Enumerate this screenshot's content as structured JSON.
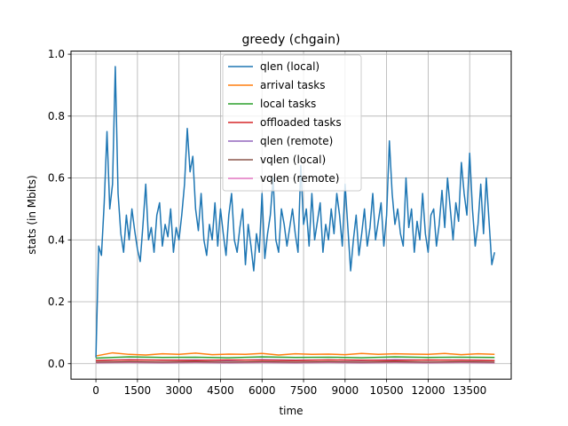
{
  "chart_data": {
    "type": "line",
    "title": "greedy (chgain)",
    "xlabel": "time",
    "ylabel": "stats (in Mbits)",
    "xlim": [
      -900,
      15000
    ],
    "ylim": [
      -0.05,
      1.01
    ],
    "xticks": [
      0,
      1500,
      3000,
      4500,
      6000,
      7500,
      9000,
      10500,
      12000,
      13500
    ],
    "yticks": [
      0.0,
      0.2,
      0.4,
      0.6,
      0.8,
      1.0
    ],
    "xtick_labels": [
      "0",
      "1500",
      "3000",
      "4500",
      "6000",
      "7500",
      "9000",
      "10500",
      "12000",
      "13500"
    ],
    "ytick_labels": [
      "0.0",
      "0.2",
      "0.4",
      "0.6",
      "0.8",
      "1.0"
    ],
    "grid": true,
    "legend_position": "top-center",
    "x_range": [
      0,
      14400
    ],
    "series": [
      {
        "name": "qlen (local)",
        "color": "#1f77b4",
        "x": [
          0,
          100,
          200,
          300,
          400,
          500,
          600,
          700,
          800,
          900,
          1000,
          1100,
          1200,
          1300,
          1400,
          1500,
          1600,
          1700,
          1800,
          1900,
          2000,
          2100,
          2200,
          2300,
          2400,
          2500,
          2600,
          2700,
          2800,
          2900,
          3000,
          3100,
          3200,
          3300,
          3400,
          3500,
          3600,
          3700,
          3800,
          3900,
          4000,
          4100,
          4200,
          4300,
          4400,
          4500,
          4600,
          4700,
          4800,
          4900,
          5000,
          5100,
          5200,
          5300,
          5400,
          5500,
          5600,
          5700,
          5800,
          5900,
          6000,
          6100,
          6200,
          6300,
          6400,
          6500,
          6600,
          6700,
          6800,
          6900,
          7000,
          7100,
          7200,
          7300,
          7400,
          7500,
          7600,
          7700,
          7800,
          7900,
          8000,
          8100,
          8200,
          8300,
          8400,
          8500,
          8600,
          8700,
          8800,
          8900,
          9000,
          9100,
          9200,
          9300,
          9400,
          9500,
          9600,
          9700,
          9800,
          9900,
          10000,
          10100,
          10200,
          10300,
          10400,
          10500,
          10600,
          10700,
          10800,
          10900,
          11000,
          11100,
          11200,
          11300,
          11400,
          11500,
          11600,
          11700,
          11800,
          11900,
          12000,
          12100,
          12200,
          12300,
          12400,
          12500,
          12600,
          12700,
          12800,
          12900,
          13000,
          13100,
          13200,
          13300,
          13400,
          13500,
          13600,
          13700,
          13800,
          13900,
          14000,
          14100,
          14200,
          14300,
          14400
        ],
        "values": [
          0.02,
          0.38,
          0.35,
          0.52,
          0.75,
          0.5,
          0.58,
          0.96,
          0.55,
          0.42,
          0.36,
          0.48,
          0.4,
          0.5,
          0.43,
          0.37,
          0.33,
          0.45,
          0.58,
          0.4,
          0.44,
          0.36,
          0.48,
          0.52,
          0.38,
          0.45,
          0.41,
          0.5,
          0.36,
          0.44,
          0.4,
          0.48,
          0.58,
          0.76,
          0.62,
          0.67,
          0.5,
          0.43,
          0.55,
          0.4,
          0.35,
          0.45,
          0.4,
          0.52,
          0.38,
          0.5,
          0.42,
          0.35,
          0.48,
          0.55,
          0.4,
          0.36,
          0.44,
          0.5,
          0.32,
          0.45,
          0.38,
          0.3,
          0.42,
          0.36,
          0.55,
          0.34,
          0.42,
          0.48,
          0.6,
          0.4,
          0.36,
          0.5,
          0.45,
          0.38,
          0.44,
          0.5,
          0.42,
          0.36,
          0.64,
          0.45,
          0.5,
          0.38,
          0.55,
          0.4,
          0.46,
          0.52,
          0.36,
          0.45,
          0.4,
          0.5,
          0.42,
          0.55,
          0.48,
          0.38,
          0.58,
          0.44,
          0.3,
          0.4,
          0.48,
          0.35,
          0.42,
          0.5,
          0.38,
          0.44,
          0.55,
          0.4,
          0.46,
          0.52,
          0.38,
          0.48,
          0.72,
          0.55,
          0.45,
          0.5,
          0.42,
          0.38,
          0.6,
          0.44,
          0.5,
          0.36,
          0.46,
          0.4,
          0.55,
          0.42,
          0.36,
          0.48,
          0.5,
          0.38,
          0.45,
          0.56,
          0.44,
          0.6,
          0.5,
          0.4,
          0.52,
          0.46,
          0.65,
          0.55,
          0.48,
          0.68,
          0.5,
          0.38,
          0.45,
          0.58,
          0.42,
          0.6,
          0.46,
          0.32,
          0.36
        ]
      },
      {
        "name": "arrival tasks",
        "color": "#ff7f0e",
        "x": [
          0,
          600,
          1200,
          1800,
          2400,
          3000,
          3600,
          4200,
          4800,
          5400,
          6000,
          6600,
          7200,
          7800,
          8400,
          9000,
          9600,
          10200,
          10800,
          11400,
          12000,
          12600,
          13200,
          13800,
          14400
        ],
        "values": [
          0.025,
          0.035,
          0.03,
          0.028,
          0.032,
          0.03,
          0.034,
          0.029,
          0.031,
          0.03,
          0.033,
          0.028,
          0.032,
          0.03,
          0.031,
          0.029,
          0.033,
          0.03,
          0.032,
          0.031,
          0.03,
          0.033,
          0.029,
          0.032,
          0.03
        ]
      },
      {
        "name": "local tasks",
        "color": "#2ca02c",
        "x": [
          0,
          1200,
          2400,
          3600,
          4800,
          6000,
          7200,
          8400,
          9600,
          10800,
          12000,
          13200,
          14400
        ],
        "values": [
          0.018,
          0.022,
          0.02,
          0.021,
          0.019,
          0.022,
          0.02,
          0.021,
          0.019,
          0.022,
          0.02,
          0.021,
          0.02
        ]
      },
      {
        "name": "offloaded tasks",
        "color": "#d62728",
        "x": [
          0,
          1200,
          2400,
          3600,
          4800,
          6000,
          7200,
          8400,
          9600,
          10800,
          12000,
          13200,
          14400
        ],
        "values": [
          0.01,
          0.012,
          0.011,
          0.01,
          0.012,
          0.011,
          0.01,
          0.012,
          0.011,
          0.01,
          0.012,
          0.011,
          0.01
        ]
      },
      {
        "name": "qlen (remote)",
        "color": "#9467bd",
        "x": [
          0,
          1200,
          2400,
          3600,
          4800,
          6000,
          7200,
          8400,
          9600,
          10800,
          12000,
          13200,
          14400
        ],
        "values": [
          0.01,
          0.013,
          0.011,
          0.012,
          0.01,
          0.013,
          0.011,
          0.012,
          0.01,
          0.013,
          0.011,
          0.012,
          0.01
        ]
      },
      {
        "name": "vqlen (local)",
        "color": "#8c564b",
        "x": [
          0,
          1200,
          2400,
          3600,
          4800,
          6000,
          7200,
          8400,
          9600,
          10800,
          12000,
          13200,
          14400
        ],
        "values": [
          0.005,
          0.006,
          0.005,
          0.006,
          0.005,
          0.006,
          0.005,
          0.006,
          0.005,
          0.006,
          0.005,
          0.006,
          0.005
        ]
      },
      {
        "name": "vqlen (remote)",
        "color": "#e377c2",
        "x": [
          0,
          1200,
          2400,
          3600,
          4800,
          6000,
          7200,
          8400,
          9600,
          10800,
          12000,
          13200,
          14400
        ],
        "values": [
          0.003,
          0.004,
          0.003,
          0.004,
          0.003,
          0.004,
          0.003,
          0.004,
          0.003,
          0.004,
          0.003,
          0.004,
          0.003
        ]
      }
    ]
  }
}
